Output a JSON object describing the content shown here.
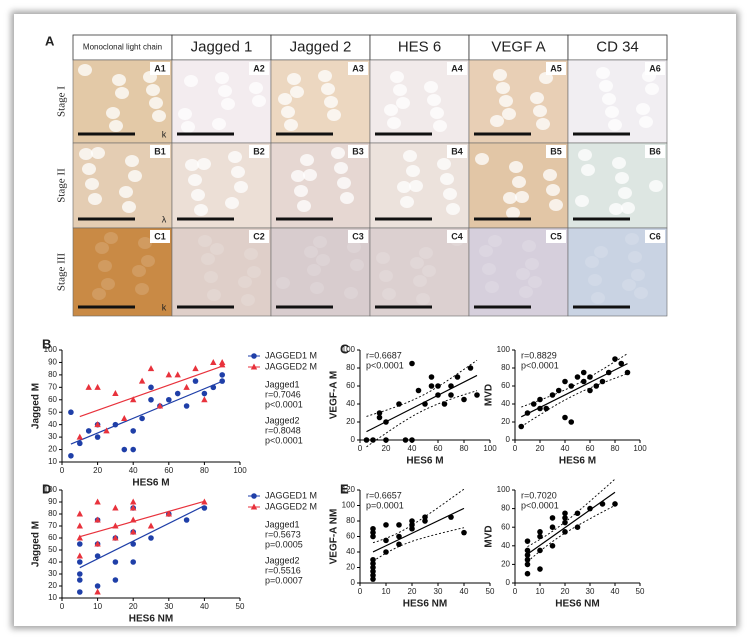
{
  "panel_a": {
    "label": "A",
    "headers": [
      "Monoclonal light chain",
      "Jagged 1",
      "Jagged 2",
      "HES 6",
      "VEGF A",
      "CD 34"
    ],
    "stages": [
      "Stage I",
      "Stage II",
      "Stage III"
    ],
    "tiles": [
      [
        "A1",
        "A2",
        "A3",
        "A4",
        "A5",
        "A6"
      ],
      [
        "B1",
        "B2",
        "B3",
        "B4",
        "B5",
        "B6"
      ],
      [
        "C1",
        "C2",
        "C3",
        "C4",
        "C5",
        "C6"
      ]
    ],
    "light_chain_marks": [
      "k",
      "λ",
      "k"
    ]
  },
  "chart_data": [
    {
      "type": "scatter",
      "panel": "B",
      "x_label": "HES6 M",
      "y_label": "Jagged M",
      "xlim": [
        0,
        100
      ],
      "xticks": [
        0,
        20,
        40,
        60,
        80,
        100
      ],
      "ylim": [
        10,
        100
      ],
      "yticks": [
        10,
        20,
        30,
        40,
        50,
        60,
        70,
        80,
        90,
        100
      ],
      "legend": "right",
      "fit_line": true,
      "confidence_band": false,
      "annotations": [
        "Jagged1",
        "r=0.7046",
        "p<0.0001",
        "Jagged2",
        "r=0.8048",
        "p<0.0001"
      ],
      "series": [
        {
          "name": "JAGGED1 M",
          "color": "#1f3fa8",
          "marker": "circle",
          "x": [
            5,
            5,
            10,
            15,
            20,
            20,
            30,
            35,
            40,
            40,
            45,
            50,
            50,
            55,
            60,
            65,
            70,
            75,
            80,
            85,
            90,
            90
          ],
          "values": [
            15,
            50,
            25,
            35,
            30,
            40,
            40,
            20,
            20,
            35,
            45,
            60,
            70,
            55,
            60,
            65,
            55,
            75,
            65,
            70,
            80,
            75
          ]
        },
        {
          "name": "JAGGED2 M",
          "color": "#e8323c",
          "marker": "triangle",
          "x": [
            10,
            15,
            20,
            20,
            25,
            30,
            35,
            40,
            45,
            50,
            55,
            60,
            65,
            70,
            75,
            80,
            85,
            90,
            90
          ],
          "values": [
            30,
            70,
            70,
            40,
            35,
            65,
            45,
            60,
            75,
            85,
            55,
            80,
            80,
            70,
            85,
            60,
            90,
            88,
            90
          ]
        }
      ]
    },
    {
      "type": "scatter",
      "panel": "C",
      "x_label": "HES6    M",
      "y_label": "VEGF-A M",
      "xlim": [
        0,
        100
      ],
      "xticks": [
        0,
        20,
        40,
        60,
        80,
        100
      ],
      "ylim": [
        0,
        100
      ],
      "yticks": [
        0,
        20,
        40,
        60,
        80,
        100
      ],
      "fit_line": true,
      "confidence_band": true,
      "annotations": [
        "r=0.6687",
        "p<0.0001"
      ],
      "series": [
        {
          "color": "#000000",
          "marker": "circle",
          "x": [
            5,
            10,
            15,
            15,
            20,
            20,
            30,
            35,
            40,
            40,
            45,
            50,
            55,
            55,
            60,
            60,
            65,
            70,
            70,
            75,
            80,
            85,
            90
          ],
          "values": [
            0,
            0,
            25,
            30,
            0,
            20,
            40,
            0,
            0,
            85,
            55,
            40,
            70,
            60,
            50,
            60,
            40,
            60,
            50,
            70,
            45,
            80,
            50
          ]
        }
      ]
    },
    {
      "type": "scatter",
      "x_label": "HES6    M",
      "y_label": "MVD",
      "xlim": [
        0,
        100
      ],
      "xticks": [
        0,
        20,
        40,
        60,
        80,
        100
      ],
      "ylim": [
        0,
        100
      ],
      "yticks": [
        0,
        20,
        40,
        60,
        80,
        100
      ],
      "fit_line": true,
      "confidence_band": true,
      "annotations": [
        "r=0.8829",
        "p<0.0001"
      ],
      "series": [
        {
          "color": "#000000",
          "marker": "circle",
          "x": [
            5,
            10,
            15,
            20,
            20,
            25,
            30,
            35,
            40,
            40,
            45,
            45,
            50,
            55,
            55,
            60,
            60,
            65,
            70,
            75,
            80,
            85,
            90
          ],
          "values": [
            15,
            30,
            40,
            35,
            45,
            35,
            50,
            55,
            25,
            65,
            20,
            60,
            70,
            65,
            75,
            55,
            70,
            60,
            65,
            75,
            90,
            85,
            75
          ]
        }
      ]
    },
    {
      "type": "scatter",
      "panel": "D",
      "x_label": "HES6 NM",
      "y_label": "Jagged M",
      "xlim": [
        0,
        50
      ],
      "xticks": [
        0,
        10,
        20,
        30,
        40,
        50
      ],
      "ylim": [
        10,
        100
      ],
      "yticks": [
        10,
        20,
        30,
        40,
        50,
        60,
        70,
        80,
        90,
        100
      ],
      "legend": "right",
      "fit_line": true,
      "confidence_band": false,
      "annotations": [
        "Jagged1",
        "r=0.5673",
        "p=0.0005",
        "Jagged2",
        "r=0.5516",
        "p=0.0007"
      ],
      "series": [
        {
          "name": "JAGGED1 M",
          "color": "#1f3fa8",
          "marker": "circle",
          "x": [
            5,
            5,
            5,
            5,
            5,
            10,
            10,
            10,
            10,
            15,
            15,
            15,
            20,
            20,
            20,
            20,
            25,
            30,
            35,
            40
          ],
          "values": [
            15,
            25,
            30,
            40,
            55,
            20,
            45,
            55,
            75,
            25,
            40,
            60,
            40,
            55,
            65,
            85,
            60,
            80,
            75,
            85
          ]
        },
        {
          "name": "JAGGED2 M",
          "color": "#e8323c",
          "marker": "triangle",
          "x": [
            5,
            5,
            5,
            5,
            10,
            10,
            10,
            10,
            15,
            15,
            15,
            20,
            20,
            20,
            20,
            25,
            30,
            40
          ],
          "values": [
            45,
            60,
            70,
            80,
            15,
            55,
            75,
            90,
            60,
            70,
            85,
            65,
            75,
            85,
            90,
            70,
            80,
            90
          ]
        }
      ]
    },
    {
      "type": "scatter",
      "panel": "E",
      "x_label": "HES6  NM",
      "y_label": "VEGF-A NM",
      "xlim": [
        0,
        50
      ],
      "xticks": [
        0,
        10,
        20,
        30,
        40,
        50
      ],
      "ylim": [
        0,
        120
      ],
      "yticks": [
        0,
        20,
        40,
        60,
        80,
        100,
        120
      ],
      "fit_line": true,
      "confidence_band": true,
      "annotations": [
        "r=0.6657",
        "p=0.0001"
      ],
      "series": [
        {
          "color": "#000000",
          "marker": "circle",
          "x": [
            5,
            5,
            5,
            5,
            5,
            5,
            5,
            5,
            5,
            10,
            10,
            10,
            15,
            15,
            15,
            20,
            20,
            20,
            25,
            25,
            35,
            40
          ],
          "values": [
            5,
            10,
            15,
            20,
            25,
            30,
            60,
            65,
            70,
            40,
            55,
            75,
            50,
            60,
            75,
            70,
            75,
            80,
            80,
            85,
            85,
            65
          ]
        }
      ]
    },
    {
      "type": "scatter",
      "x_label": "HES6  NM",
      "y_label": "MVD",
      "xlim": [
        0,
        50
      ],
      "xticks": [
        0,
        10,
        20,
        30,
        40,
        50
      ],
      "ylim": [
        0,
        100
      ],
      "yticks": [
        0,
        20,
        40,
        60,
        80,
        100
      ],
      "fit_line": true,
      "confidence_band": true,
      "annotations": [
        "r=0.7020",
        "p<0.0001"
      ],
      "series": [
        {
          "color": "#000000",
          "marker": "circle",
          "x": [
            5,
            5,
            5,
            5,
            5,
            5,
            10,
            10,
            10,
            10,
            15,
            15,
            15,
            20,
            20,
            20,
            20,
            25,
            25,
            30,
            35,
            40
          ],
          "values": [
            10,
            20,
            25,
            30,
            35,
            45,
            15,
            35,
            50,
            55,
            40,
            60,
            70,
            55,
            65,
            70,
            75,
            60,
            75,
            80,
            85,
            85
          ]
        }
      ]
    }
  ]
}
